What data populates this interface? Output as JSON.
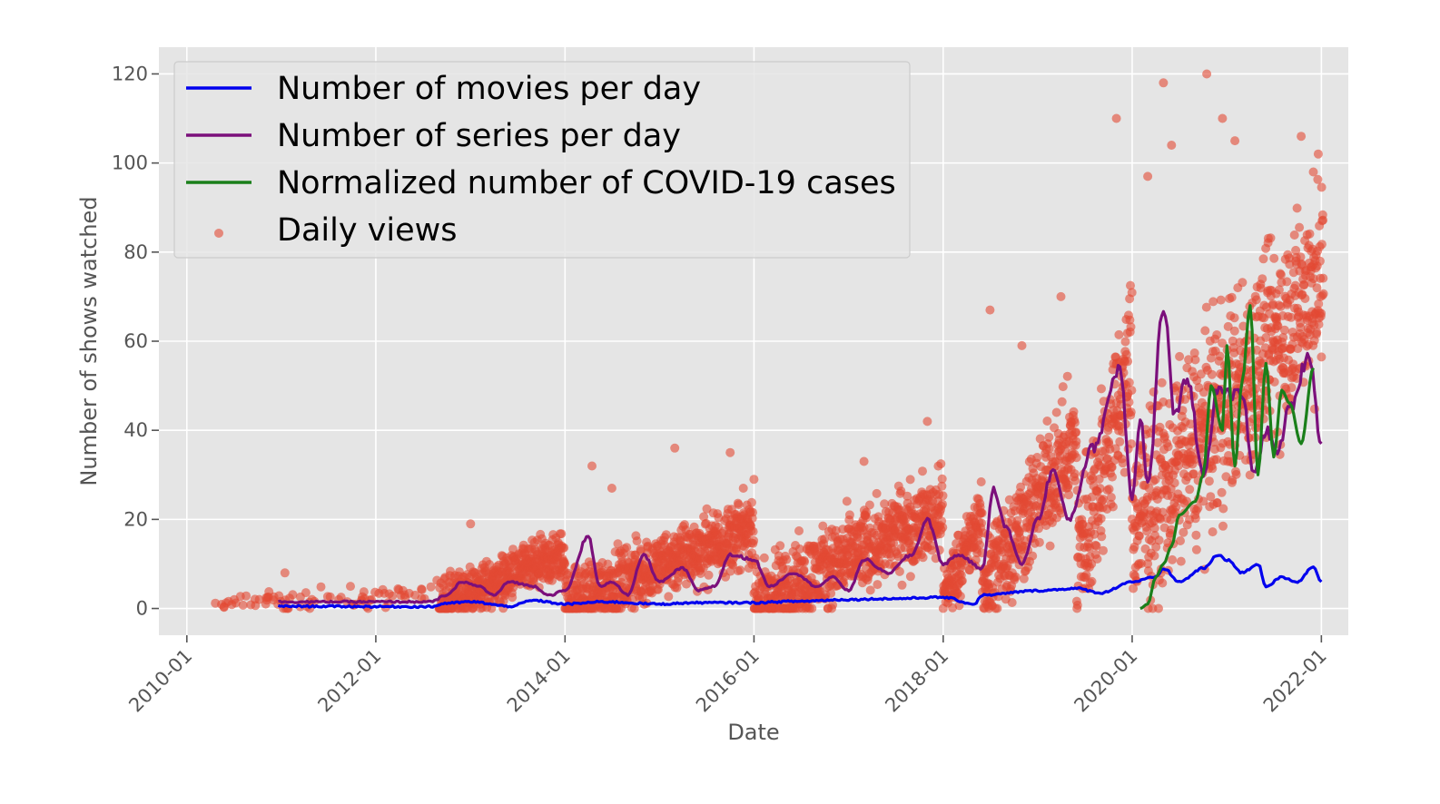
{
  "chart_data": {
    "type": "line",
    "title": "",
    "xlabel": "Date",
    "ylabel": "Number of shows watched",
    "x_axis": {
      "type": "date",
      "range": [
        "2009-09-15",
        "2022-04-15"
      ],
      "ticks": [
        "2010-01",
        "2012-01",
        "2014-01",
        "2016-01",
        "2018-01",
        "2020-01",
        "2022-01"
      ],
      "tick_rotation": 45
    },
    "y_axis": {
      "range": [
        -6,
        126
      ],
      "ticks": [
        0,
        20,
        40,
        60,
        80,
        100,
        120
      ]
    },
    "grid": true,
    "legend": {
      "placement": "top-left",
      "entries": [
        "Number of movies per day",
        "Number of series per day",
        "Normalized number of COVID-19 cases",
        "Daily views"
      ]
    },
    "series": [
      {
        "name": "Number of movies per day",
        "kind": "line",
        "color": "#0000ee",
        "points": [
          [
            "2010-12-20",
            0.5
          ],
          [
            "2012-08-01",
            0.4
          ],
          [
            "2012-10-01",
            1.2
          ],
          [
            "2013-01-01",
            1.5
          ],
          [
            "2013-06-01",
            0.5
          ],
          [
            "2013-09-01",
            1.8
          ],
          [
            "2014-01-01",
            1.0
          ],
          [
            "2014-06-01",
            1.5
          ],
          [
            "2015-01-01",
            1.0
          ],
          [
            "2015-06-01",
            1.3
          ],
          [
            "2016-01-01",
            1.3
          ],
          [
            "2016-06-01",
            1.6
          ],
          [
            "2017-01-01",
            2.0
          ],
          [
            "2017-06-01",
            2.2
          ],
          [
            "2018-01-01",
            2.5
          ],
          [
            "2018-05-01",
            1.0
          ],
          [
            "2018-06-01",
            3.0
          ],
          [
            "2019-01-01",
            4.0
          ],
          [
            "2019-06-01",
            4.5
          ],
          [
            "2019-09-01",
            3.5
          ],
          [
            "2020-01-01",
            6.0
          ],
          [
            "2020-04-01",
            7.0
          ],
          [
            "2020-05-01",
            9.0
          ],
          [
            "2020-07-01",
            6.0
          ],
          [
            "2020-10-01",
            9.0
          ],
          [
            "2020-12-01",
            12.0
          ],
          [
            "2021-01-01",
            11.0
          ],
          [
            "2021-03-01",
            8.0
          ],
          [
            "2021-05-01",
            10.0
          ],
          [
            "2021-06-01",
            5.0
          ],
          [
            "2021-08-01",
            7.0
          ],
          [
            "2021-10-01",
            6.0
          ],
          [
            "2021-12-01",
            9.5
          ],
          [
            "2022-01-01",
            6.0
          ]
        ]
      },
      {
        "name": "Number of series per day",
        "kind": "line",
        "color": "#7b0f7b",
        "points": [
          [
            "2010-12-20",
            1.5
          ],
          [
            "2012-08-01",
            1.5
          ],
          [
            "2012-10-01",
            3.0
          ],
          [
            "2012-12-01",
            6.0
          ],
          [
            "2013-02-01",
            5.0
          ],
          [
            "2013-04-01",
            3.0
          ],
          [
            "2013-06-01",
            6.0
          ],
          [
            "2013-09-01",
            5.0
          ],
          [
            "2013-11-01",
            3.0
          ],
          [
            "2014-01-01",
            4.0
          ],
          [
            "2014-04-01",
            16.0
          ],
          [
            "2014-05-15",
            5.0
          ],
          [
            "2014-07-01",
            6.0
          ],
          [
            "2014-09-01",
            3.0
          ],
          [
            "2014-11-01",
            12.0
          ],
          [
            "2015-01-01",
            6.0
          ],
          [
            "2015-04-01",
            9.0
          ],
          [
            "2015-06-01",
            4.0
          ],
          [
            "2015-08-01",
            5.0
          ],
          [
            "2015-10-01",
            12.0
          ],
          [
            "2016-01-01",
            11.0
          ],
          [
            "2016-03-01",
            5.0
          ],
          [
            "2016-06-01",
            8.0
          ],
          [
            "2016-09-01",
            5.0
          ],
          [
            "2016-11-01",
            7.0
          ],
          [
            "2017-01-01",
            4.0
          ],
          [
            "2017-03-01",
            11.0
          ],
          [
            "2017-06-01",
            8.0
          ],
          [
            "2017-09-01",
            12.0
          ],
          [
            "2017-11-01",
            20.0
          ],
          [
            "2018-01-01",
            10.0
          ],
          [
            "2018-03-01",
            12.0
          ],
          [
            "2018-06-01",
            9.0
          ],
          [
            "2018-07-15",
            27.0
          ],
          [
            "2018-09-01",
            18.0
          ],
          [
            "2018-11-01",
            10.0
          ],
          [
            "2019-01-01",
            20.0
          ],
          [
            "2019-03-01",
            31.0
          ],
          [
            "2019-05-01",
            20.0
          ],
          [
            "2019-08-01",
            36.0
          ],
          [
            "2019-11-15",
            54.0
          ],
          [
            "2020-01-01",
            25.0
          ],
          [
            "2020-02-01",
            43.0
          ],
          [
            "2020-03-01",
            28.0
          ],
          [
            "2020-05-01",
            68.0
          ],
          [
            "2020-06-15",
            43.0
          ],
          [
            "2020-08-01",
            52.0
          ],
          [
            "2020-10-01",
            30.0
          ],
          [
            "2020-12-01",
            50.0
          ],
          [
            "2021-01-15",
            48.0
          ],
          [
            "2021-03-01",
            48.0
          ],
          [
            "2021-04-15",
            30.0
          ],
          [
            "2021-06-01",
            40.0
          ],
          [
            "2021-07-15",
            35.0
          ],
          [
            "2021-09-01",
            45.0
          ],
          [
            "2021-11-15",
            57.0
          ],
          [
            "2022-01-01",
            37.0
          ]
        ]
      },
      {
        "name": "Normalized number of COVID-19 cases",
        "kind": "line",
        "color": "#1a7f1a",
        "points": [
          [
            "2020-02-01",
            0.0
          ],
          [
            "2020-03-01",
            1.0
          ],
          [
            "2020-04-01",
            7.0
          ],
          [
            "2020-05-01",
            10.0
          ],
          [
            "2020-06-01",
            14.0
          ],
          [
            "2020-07-01",
            21.0
          ],
          [
            "2020-09-01",
            24.0
          ],
          [
            "2020-10-01",
            30.0
          ],
          [
            "2020-11-01",
            50.0
          ],
          [
            "2020-12-15",
            40.0
          ],
          [
            "2021-01-01",
            59.0
          ],
          [
            "2021-02-01",
            32.0
          ],
          [
            "2021-03-01",
            51.0
          ],
          [
            "2021-04-01",
            68.0
          ],
          [
            "2021-05-01",
            30.0
          ],
          [
            "2021-06-01",
            55.0
          ],
          [
            "2021-07-01",
            34.0
          ],
          [
            "2021-08-01",
            49.0
          ],
          [
            "2021-09-01",
            46.0
          ],
          [
            "2021-10-15",
            37.0
          ],
          [
            "2021-12-01",
            54.0
          ]
        ]
      },
      {
        "name": "Daily views",
        "kind": "scatter",
        "color": "#e24a33",
        "opacity": 0.6,
        "segments": [
          {
            "from": "2010-04-01",
            "to": "2010-12-31",
            "low": 1,
            "high": 2,
            "spread": 2,
            "density": 0.12
          },
          {
            "from": "2011-01-01",
            "to": "2012-08-31",
            "low": 1,
            "high": 4,
            "spread": 3,
            "density": 0.08
          },
          {
            "from": "2012-09-01",
            "to": "2014-01-01",
            "low": 1,
            "high": 12,
            "spread": 6,
            "density": 1.0
          },
          {
            "from": "2014-01-01",
            "to": "2016-01-01",
            "low": 1,
            "high": 18,
            "spread": 8,
            "density": 1.0
          },
          {
            "from": "2016-01-01",
            "to": "2018-01-01",
            "low": 1,
            "high": 22,
            "spread": 10,
            "density": 1.0
          },
          {
            "from": "2018-01-01",
            "to": "2018-06-01",
            "low": 3,
            "high": 20,
            "spread": 8,
            "density": 1.0
          },
          {
            "from": "2018-06-01",
            "to": "2019-06-01",
            "low": 5,
            "high": 38,
            "spread": 14,
            "density": 1.0
          },
          {
            "from": "2019-06-01",
            "to": "2020-01-01",
            "low": 10,
            "high": 55,
            "spread": 20,
            "density": 1.0
          },
          {
            "from": "2020-01-01",
            "to": "2022-01-10",
            "low": 18,
            "high": 75,
            "spread": 24,
            "density": 1.0
          }
        ],
        "outliers": [
          [
            "2011-01-15",
            8
          ],
          [
            "2013-01-01",
            19
          ],
          [
            "2014-04-15",
            32
          ],
          [
            "2014-07-01",
            27
          ],
          [
            "2015-03-01",
            36
          ],
          [
            "2015-10-01",
            35
          ],
          [
            "2016-01-01",
            29
          ],
          [
            "2017-03-01",
            33
          ],
          [
            "2017-11-01",
            42
          ],
          [
            "2018-07-01",
            67
          ],
          [
            "2018-11-01",
            59
          ],
          [
            "2019-04-01",
            70
          ],
          [
            "2019-11-01",
            110
          ],
          [
            "2020-03-01",
            97
          ],
          [
            "2020-05-01",
            118
          ],
          [
            "2020-06-01",
            104
          ],
          [
            "2020-10-15",
            120
          ],
          [
            "2020-12-15",
            110
          ],
          [
            "2021-02-01",
            105
          ],
          [
            "2021-10-15",
            106
          ],
          [
            "2021-12-01",
            98
          ]
        ]
      }
    ]
  }
}
